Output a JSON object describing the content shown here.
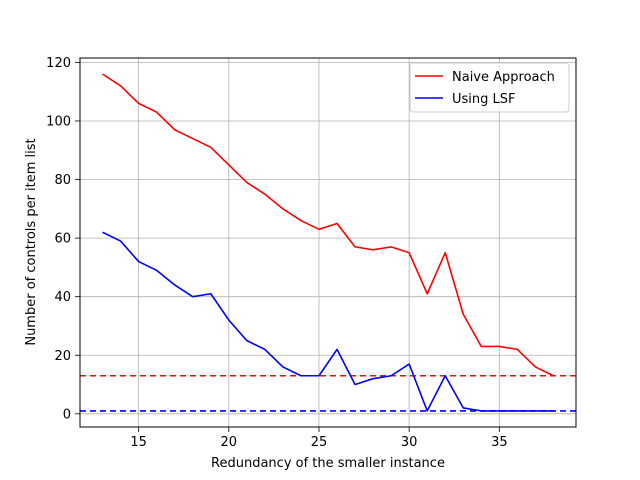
{
  "chart_data": {
    "type": "line",
    "title": "",
    "xlabel": "Redundancy of the smaller instance",
    "ylabel": "Number of controls per item list",
    "xlim": [
      11.75,
      39.25
    ],
    "ylim": [
      -4.5,
      121.5
    ],
    "xticks": [
      15,
      20,
      25,
      30,
      35
    ],
    "yticks": [
      0,
      20,
      40,
      60,
      80,
      100,
      120
    ],
    "grid": true,
    "legend_position": "top-right",
    "x": [
      13,
      14,
      15,
      16,
      17,
      18,
      19,
      20,
      21,
      22,
      23,
      24,
      25,
      26,
      27,
      28,
      29,
      30,
      31,
      32,
      33,
      34,
      35,
      36,
      37,
      38
    ],
    "series": [
      {
        "name": "Naive Approach",
        "color": "#ff0000",
        "values": [
          116,
          112,
          106,
          103,
          97,
          94,
          91,
          85,
          79,
          75,
          70,
          66,
          63,
          65,
          57,
          56,
          57,
          55,
          41,
          55,
          34,
          23,
          23,
          22,
          16,
          13
        ]
      },
      {
        "name": "Using LSF",
        "color": "#0000ff",
        "values": [
          62,
          59,
          52,
          49,
          44,
          40,
          41,
          32,
          25,
          22,
          16,
          13,
          13,
          22,
          10,
          12,
          13,
          17,
          1,
          13,
          2,
          1,
          1,
          1,
          1,
          1
        ]
      }
    ],
    "reference_lines": [
      {
        "y": 13,
        "color": "#ff0000",
        "style": "dashed"
      },
      {
        "y": 1,
        "color": "#0000ff",
        "style": "dashed"
      }
    ]
  }
}
